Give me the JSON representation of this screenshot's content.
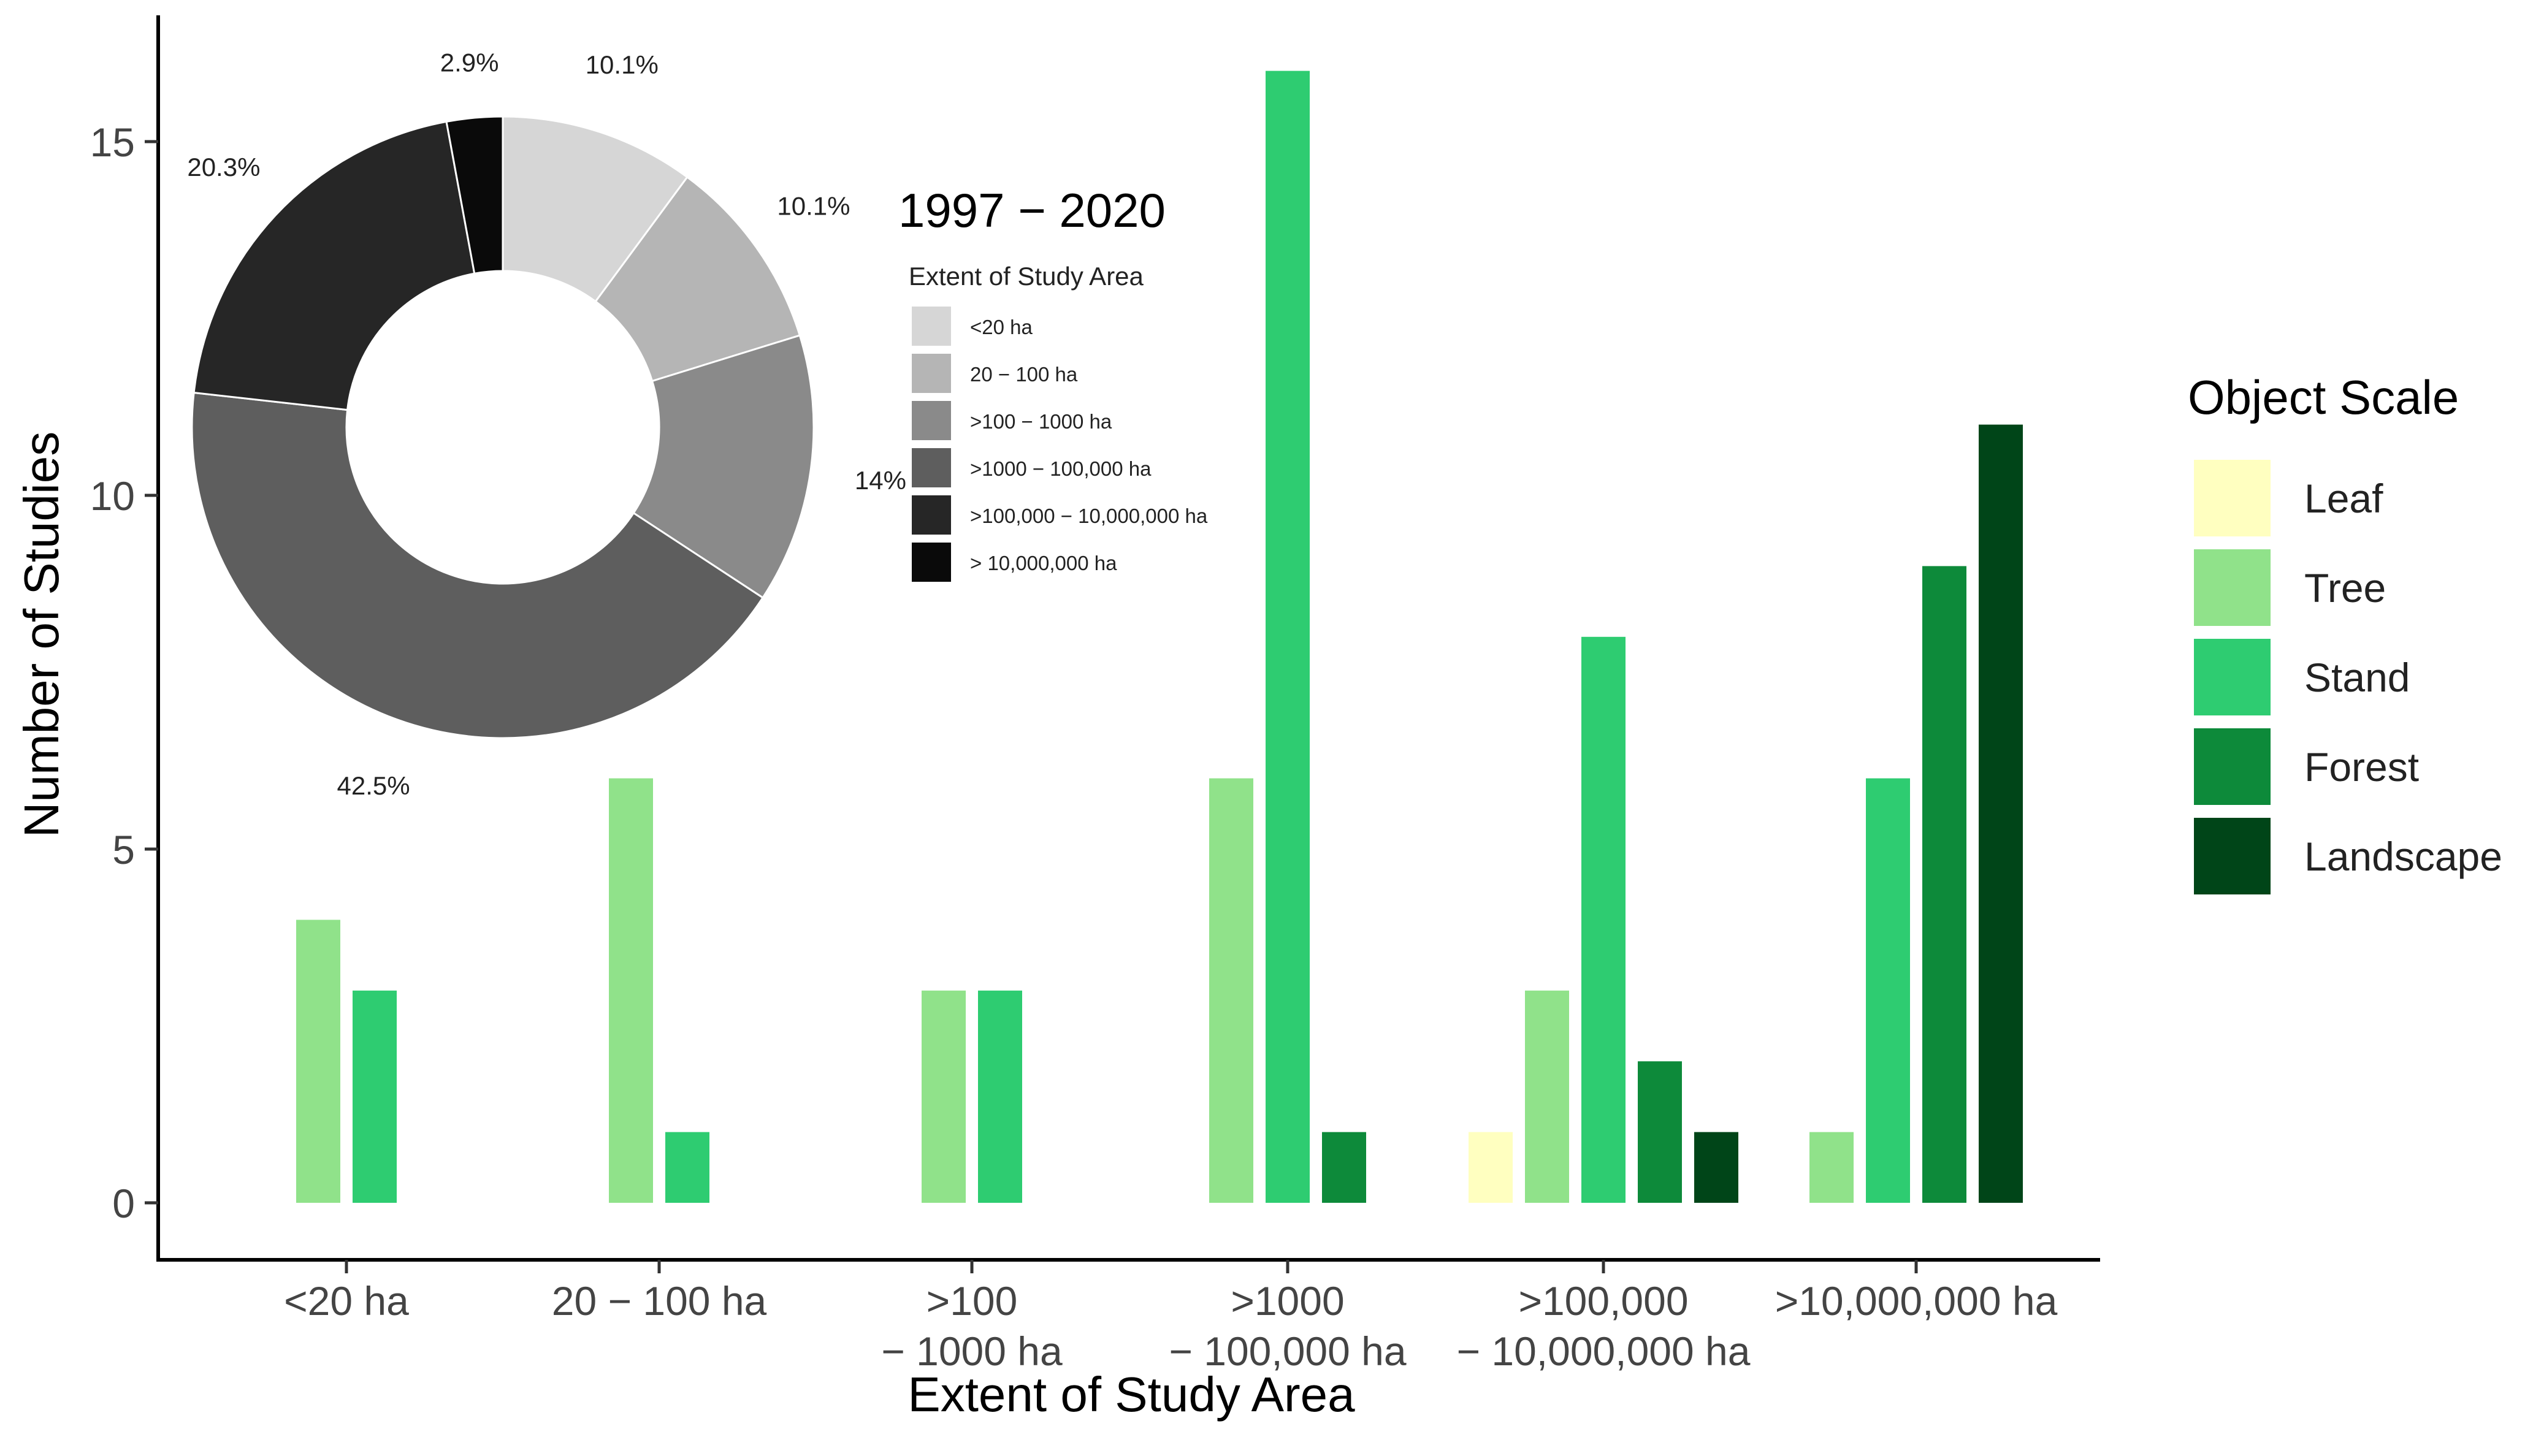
{
  "chart_data": [
    {
      "type": "bar",
      "xlabel": "Extent of Study Area",
      "ylabel": "Number of Studies",
      "ylim": [
        0,
        16
      ],
      "y_ticks": [
        0,
        5,
        10,
        15
      ],
      "grid": false,
      "categories": [
        [
          "<20 ha"
        ],
        [
          "20 − 100 ha"
        ],
        [
          ">100",
          "− 1000 ha"
        ],
        [
          ">1000",
          "− 100,000 ha"
        ],
        [
          ">100,000",
          "− 10,000,000 ha"
        ],
        [
          ">10,000,000 ha"
        ]
      ],
      "legend": {
        "title": "Object Scale",
        "position": "right"
      },
      "series": [
        {
          "name": "Leaf",
          "color": "#FFFFC0",
          "values": [
            0,
            0,
            0,
            0,
            1,
            0
          ]
        },
        {
          "name": "Tree",
          "color": "#90E28A",
          "values": [
            4,
            6,
            3,
            6,
            3,
            1
          ]
        },
        {
          "name": "Stand",
          "color": "#2ECC71",
          "values": [
            3,
            1,
            3,
            16,
            8,
            6
          ]
        },
        {
          "name": "Forest",
          "color": "#0D8A3A",
          "values": [
            0,
            0,
            0,
            1,
            2,
            9
          ]
        },
        {
          "name": "Landscape",
          "color": "#004518",
          "values": [
            0,
            0,
            0,
            0,
            1,
            11
          ]
        }
      ]
    },
    {
      "type": "pie",
      "donut": true,
      "title": "1997 − 2020",
      "legend": {
        "title": "Extent of Study Area",
        "position": "right"
      },
      "slices": [
        {
          "label": "<20 ha",
          "value": 10.1,
          "text": "10.1%",
          "color": "#D6D6D6"
        },
        {
          "label": "20 − 100 ha",
          "value": 10.1,
          "text": "10.1%",
          "color": "#B5B5B5"
        },
        {
          "label": ">100 − 1000 ha",
          "value": 14,
          "text": "14%",
          "color": "#8A8A8A"
        },
        {
          "label": ">1000 − 100,000 ha",
          "value": 42.5,
          "text": "42.5%",
          "color": "#5E5E5E"
        },
        {
          "label": ">100,000 − 10,000,000 ha",
          "value": 20.3,
          "text": "20.3%",
          "color": "#262626"
        },
        {
          "label": "> 10,000,000 ha",
          "value": 2.9,
          "text": "2.9%",
          "color": "#0A0A0A"
        }
      ]
    }
  ]
}
